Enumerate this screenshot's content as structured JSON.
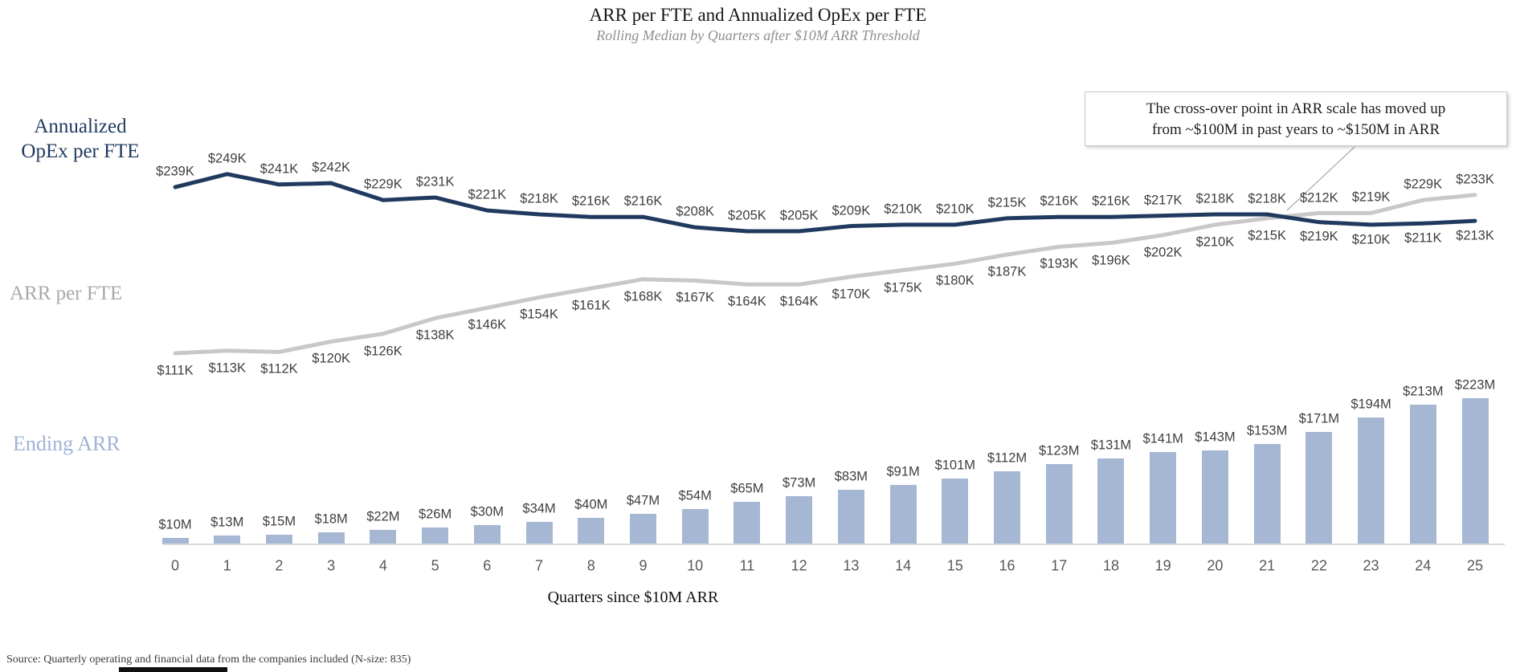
{
  "header": {
    "title": "ARR per FTE and Annualized OpEx per FTE",
    "subtitle": "Rolling Median by Quarters after $10M ARR Threshold"
  },
  "annotation": {
    "line1": "The cross-over point in ARR scale has moved up",
    "line2": "from ~$100M in past years to ~$150M in ARR"
  },
  "category_labels": {
    "opex": "Annualized\nOpEx per FTE",
    "arr": "ARR per FTE",
    "ending_arr": "Ending ARR"
  },
  "colors": {
    "opex_line": "#203a5f",
    "arr_line": "#c8c8c8",
    "bar": "#a6b7d4",
    "leader_line": "#adadad"
  },
  "chart_data": {
    "type": "combo (two line series + bar series)",
    "title": "ARR per FTE and Annualized OpEx per FTE",
    "subtitle": "Rolling Median by Quarters after $10M ARR Threshold",
    "xlabel": "Quarters since $10M ARR",
    "categories": [
      "0",
      "1",
      "2",
      "3",
      "4",
      "5",
      "6",
      "7",
      "8",
      "9",
      "10",
      "11",
      "12",
      "13",
      "14",
      "15",
      "16",
      "17",
      "18",
      "19",
      "20",
      "21",
      "22",
      "23",
      "24",
      "25"
    ],
    "grid": false,
    "legend_position": "left category labels",
    "series": [
      {
        "name": "Annualized OpEx per FTE",
        "type": "line",
        "unit": "$K",
        "values": [
          239,
          249,
          241,
          242,
          229,
          231,
          221,
          218,
          216,
          216,
          208,
          205,
          205,
          209,
          210,
          210,
          215,
          216,
          216,
          217,
          218,
          218,
          212,
          210,
          211,
          213
        ],
        "labels": [
          "$239K",
          "$249K",
          "$241K",
          "$242K",
          "$229K",
          "$231K",
          "$221K",
          "$218K",
          "$216K",
          "$216K",
          "$208K",
          "$205K",
          "$205K",
          "$209K",
          "$210K",
          "$210K",
          "$215K",
          "$216K",
          "$216K",
          "$217K",
          "$218K",
          "$218K",
          "$212K",
          "$210K",
          "$211K",
          "$213K"
        ]
      },
      {
        "name": "ARR per FTE",
        "type": "line",
        "unit": "$K",
        "values": [
          111,
          113,
          112,
          120,
          126,
          138,
          146,
          154,
          161,
          168,
          167,
          164,
          164,
          170,
          175,
          180,
          187,
          193,
          196,
          202,
          210,
          215,
          219,
          219,
          229,
          233
        ],
        "labels": [
          "$111K",
          "$113K",
          "$112K",
          "$120K",
          "$126K",
          "$138K",
          "$146K",
          "$154K",
          "$161K",
          "$168K",
          "$167K",
          "$164K",
          "$164K",
          "$170K",
          "$175K",
          "$180K",
          "$187K",
          "$193K",
          "$196K",
          "$202K",
          "$210K",
          "$215K",
          "$219K",
          "$219K",
          "$229K",
          "$233K"
        ]
      },
      {
        "name": "Ending ARR",
        "type": "bar",
        "unit": "$M",
        "values": [
          10,
          13,
          15,
          18,
          22,
          26,
          30,
          34,
          40,
          47,
          54,
          65,
          73,
          83,
          91,
          101,
          112,
          123,
          131,
          141,
          143,
          153,
          171,
          194,
          213,
          223
        ],
        "labels": [
          "$10M",
          "$13M",
          "$15M",
          "$18M",
          "$22M",
          "$26M",
          "$30M",
          "$34M",
          "$40M",
          "$47M",
          "$54M",
          "$65M",
          "$73M",
          "$83M",
          "$91M",
          "$101M",
          "$112M",
          "$123M",
          "$131M",
          "$141M",
          "$143M",
          "$153M",
          "$171M",
          "$194M",
          "$213M",
          "$223M"
        ]
      }
    ]
  },
  "source": "Source: Quarterly operating and financial data from the companies included (N-size: 835)"
}
